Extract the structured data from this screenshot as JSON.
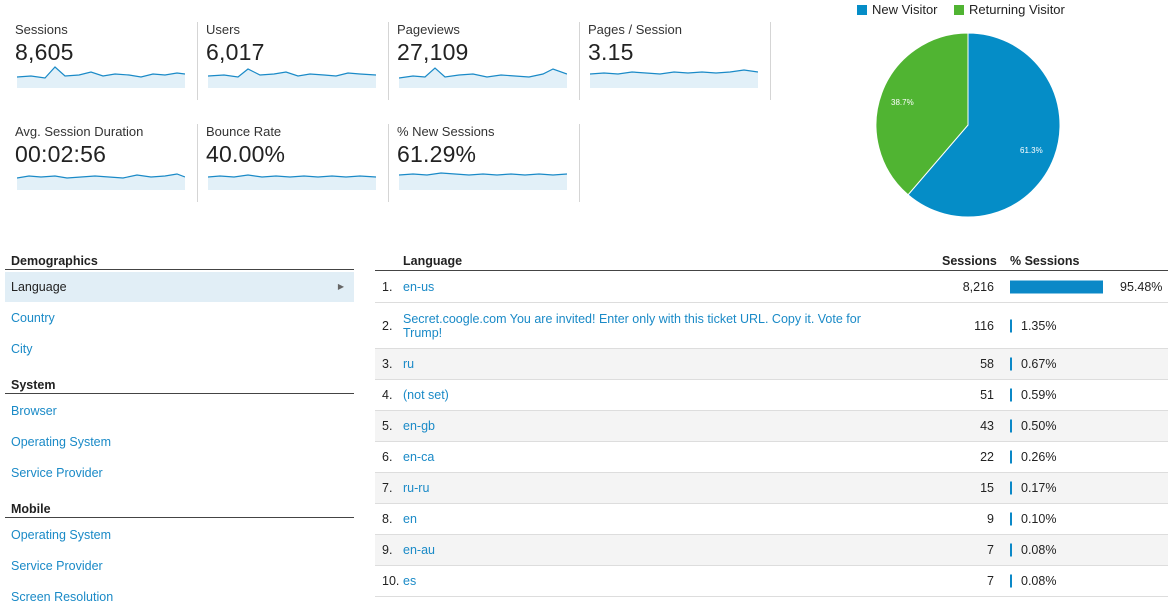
{
  "metrics": [
    {
      "label": "Sessions",
      "value": "8,605"
    },
    {
      "label": "Users",
      "value": "6,017"
    },
    {
      "label": "Pageviews",
      "value": "27,109"
    },
    {
      "label": "Pages / Session",
      "value": "3.15"
    },
    {
      "label": "Avg. Session Duration",
      "value": "00:02:56"
    },
    {
      "label": "Bounce Rate",
      "value": "40.00%"
    },
    {
      "label": "% New Sessions",
      "value": "61.29%"
    }
  ],
  "pie": {
    "legend": [
      {
        "label": "New Visitor",
        "color": "#058dc7"
      },
      {
        "label": "Returning Visitor",
        "color": "#50b432"
      }
    ],
    "new_pct_label": "61.3%",
    "returning_pct_label": "38.7%",
    "new_fraction": 0.613
  },
  "nav": {
    "demographics": "Demographics",
    "language": "Language",
    "country": "Country",
    "city": "City",
    "system": "System",
    "browser": "Browser",
    "operating_system": "Operating System",
    "service_provider": "Service Provider",
    "mobile": "Mobile",
    "mobile_operating_system": "Operating System",
    "mobile_service_provider": "Service Provider",
    "screen_resolution": "Screen Resolution"
  },
  "table": {
    "col_language": "Language",
    "col_sessions": "Sessions",
    "col_pct_sessions": "% Sessions",
    "rows": [
      {
        "num": "1.",
        "lang": "en-us",
        "sessions": "8,216",
        "pct": "95.48%",
        "fraction": 0.9548
      },
      {
        "num": "2.",
        "lang": "Secret.coogle.com You are invited! Enter only with this ticket URL. Copy it. Vote for Trump!",
        "sessions": "116",
        "pct": "1.35%",
        "fraction": 0.0135
      },
      {
        "num": "3.",
        "lang": "ru",
        "sessions": "58",
        "pct": "0.67%",
        "fraction": 0.0067
      },
      {
        "num": "4.",
        "lang": "(not set)",
        "sessions": "51",
        "pct": "0.59%",
        "fraction": 0.0059
      },
      {
        "num": "5.",
        "lang": "en-gb",
        "sessions": "43",
        "pct": "0.50%",
        "fraction": 0.005
      },
      {
        "num": "6.",
        "lang": "en-ca",
        "sessions": "22",
        "pct": "0.26%",
        "fraction": 0.0026
      },
      {
        "num": "7.",
        "lang": "ru-ru",
        "sessions": "15",
        "pct": "0.17%",
        "fraction": 0.0017
      },
      {
        "num": "8.",
        "lang": "en",
        "sessions": "9",
        "pct": "0.10%",
        "fraction": 0.001
      },
      {
        "num": "9.",
        "lang": "en-au",
        "sessions": "7",
        "pct": "0.08%",
        "fraction": 0.0008
      },
      {
        "num": "10.",
        "lang": "es",
        "sessions": "7",
        "pct": "0.08%",
        "fraction": 0.0008
      }
    ]
  }
}
